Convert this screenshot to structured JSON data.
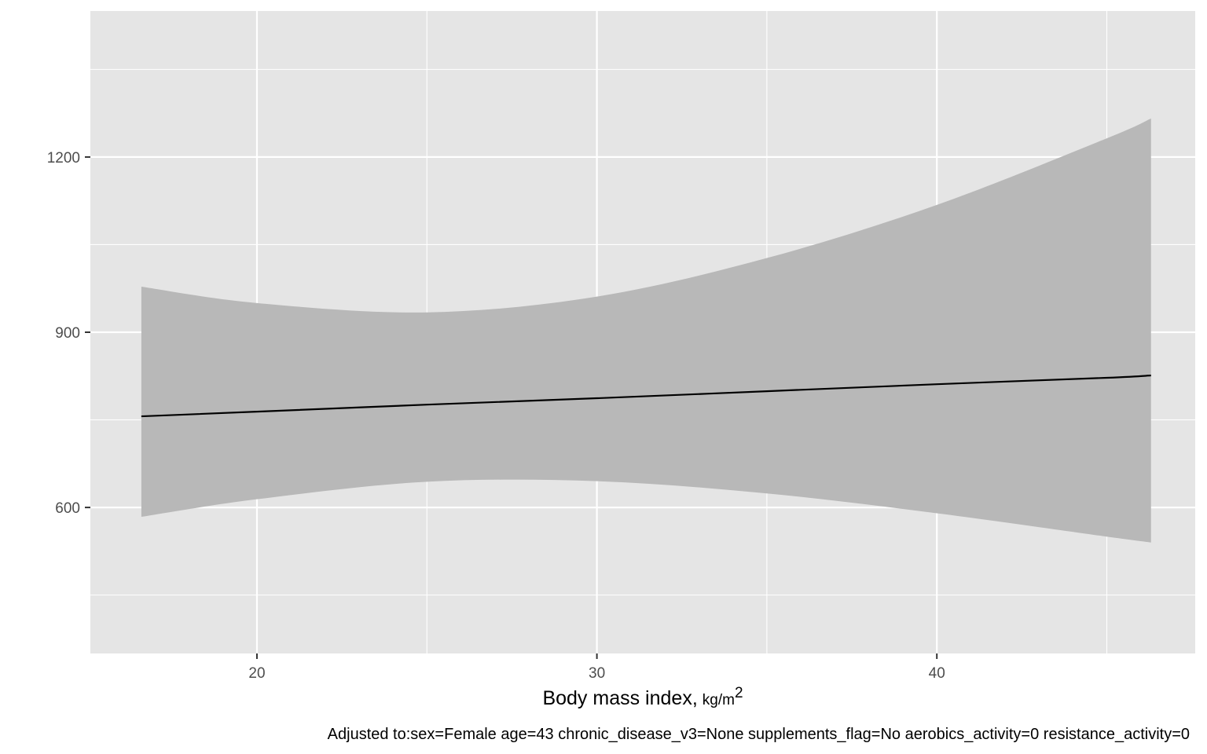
{
  "chart_data": {
    "type": "line",
    "xlabel": "Body mass index,",
    "xlabel_unit": {
      "base": "kg/m",
      "superscript": "2"
    },
    "ylabel": "",
    "caption": "Adjusted to:sex=Female age=43 chronic_disease_v3=None supplements_flag=No aerobics_activity=0 resistance_activity=0",
    "xlim": [
      15.1,
      47.6
    ],
    "ylim": [
      350,
      1450
    ],
    "x_ticks": [
      20,
      30,
      40
    ],
    "y_ticks": [
      600,
      900,
      1200
    ],
    "x_tick_labels": [
      "20",
      "30",
      "40"
    ],
    "y_tick_labels": [
      "600",
      "900",
      "1200"
    ],
    "grid": true,
    "legend": "none",
    "series": [
      {
        "x": [
          16.6,
          20,
          25,
          30,
          35,
          40,
          45,
          46.3
        ],
        "y": [
          756,
          764,
          776,
          787,
          799,
          811,
          822,
          826
        ],
        "lower": [
          584,
          614,
          644,
          645,
          624,
          590,
          550,
          540
        ],
        "upper": [
          978,
          950,
          934,
          961,
          1027,
          1118,
          1232,
          1266
        ]
      }
    ],
    "colors": {
      "panel": "#e5e5e5",
      "grid": "#ffffff",
      "ribbon": "#b8b8b8",
      "line": "#000000",
      "tick": "#333333",
      "tick_text": "#4d4d4d"
    }
  }
}
